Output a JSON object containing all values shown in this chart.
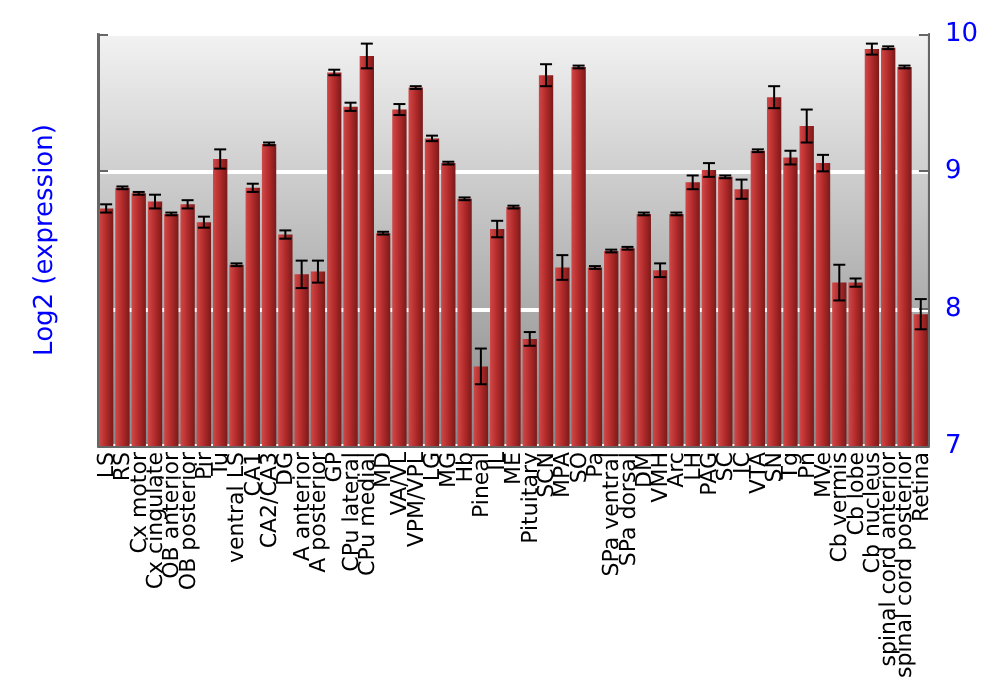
{
  "chart_data": {
    "type": "bar",
    "ylabel": "Log2 (expression)",
    "categories": [
      "LS",
      "RS",
      "Cx motor",
      "Cx cingulate",
      "OB anterior",
      "OB posterior",
      "Pir",
      "Tu",
      "ventral LS",
      "CA1",
      "CA2/CA3",
      "DG",
      "A anterior",
      "A posterior",
      "GP",
      "CPu lateral",
      "CPu medial",
      "MD",
      "VA/VL",
      "VPM/VPL",
      "LG",
      "MG",
      "Hb",
      "Pineal",
      "IL",
      "ME",
      "Pituitary",
      "SCN",
      "MPA",
      "SO",
      "Pa",
      "SPa ventral",
      "SPa dorsal",
      "DM",
      "VMH",
      "Arc",
      "LH",
      "PAG",
      "SC",
      "IC",
      "VTA",
      "SN",
      "Tg",
      "Pn",
      "MVe",
      "Cb vermis",
      "Cb lobe",
      "Cb nucleus",
      "spinal cord anterior",
      "spinal cord posterior",
      "Retina"
    ],
    "values": [
      8.73,
      8.88,
      8.84,
      8.78,
      8.69,
      8.76,
      8.63,
      9.09,
      8.32,
      8.88,
      9.2,
      8.54,
      8.25,
      8.27,
      9.72,
      9.47,
      9.84,
      8.55,
      9.45,
      9.61,
      9.24,
      9.06,
      8.8,
      7.58,
      8.58,
      8.74,
      7.78,
      9.7,
      8.3,
      9.76,
      8.3,
      8.42,
      8.44,
      8.69,
      8.28,
      8.69,
      8.92,
      9.01,
      8.96,
      8.87,
      9.15,
      9.54,
      9.1,
      9.33,
      9.06,
      8.19,
      8.19,
      9.89,
      9.9,
      9.76,
      7.96
    ],
    "errors": [
      0.03,
      0.01,
      0.01,
      0.05,
      0.01,
      0.03,
      0.04,
      0.07,
      0.01,
      0.03,
      0.01,
      0.03,
      0.1,
      0.08,
      0.02,
      0.03,
      0.09,
      0.01,
      0.04,
      0.01,
      0.02,
      0.01,
      0.01,
      0.13,
      0.06,
      0.01,
      0.05,
      0.08,
      0.09,
      0.01,
      0.01,
      0.01,
      0.01,
      0.01,
      0.05,
      0.01,
      0.05,
      0.05,
      0.01,
      0.07,
      0.01,
      0.08,
      0.05,
      0.12,
      0.06,
      0.13,
      0.03,
      0.04,
      0.01,
      0.01,
      0.11
    ],
    "color": "#b22a2a",
    "ylim": [
      7,
      10
    ],
    "yticks": [
      7,
      8,
      9,
      10
    ],
    "grid": "y"
  }
}
